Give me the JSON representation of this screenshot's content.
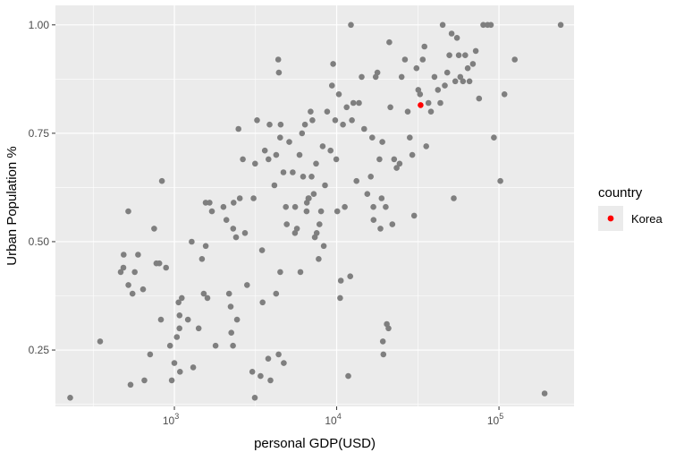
{
  "chart_data": {
    "type": "scatter",
    "xlabel": "personal GDP(USD)",
    "ylabel": "Urban Population %",
    "x_scale": "log10",
    "xlim": [
      185,
      290000
    ],
    "ylim": [
      0.12,
      1.045
    ],
    "x_ticks": [
      {
        "value": 1000,
        "base": "10",
        "exp": "3"
      },
      {
        "value": 10000,
        "base": "10",
        "exp": "4"
      },
      {
        "value": 100000,
        "base": "10",
        "exp": "5"
      }
    ],
    "y_ticks": [
      {
        "value": 0.25,
        "label": "0.25"
      },
      {
        "value": 0.5,
        "label": "0.50"
      },
      {
        "value": 0.75,
        "label": "0.75"
      },
      {
        "value": 1.0,
        "label": "1.00"
      }
    ],
    "grid": true,
    "legend": {
      "position": "right",
      "title": "country",
      "items": [
        {
          "label": "Korea",
          "color": "#ff0000"
        }
      ]
    },
    "colors": {
      "panel": "#ebebeb",
      "grid": "#ffffff",
      "point": "#7f7f7f",
      "highlight": "#ff0000"
    },
    "series": [
      {
        "color": "#7f7f7f",
        "points": [
          [
            228,
            0.14
          ],
          [
            349,
            0.27
          ],
          [
            467,
            0.43
          ],
          [
            487,
            0.47
          ],
          [
            485,
            0.44
          ],
          [
            520,
            0.57
          ],
          [
            521,
            0.4
          ],
          [
            537,
            0.17
          ],
          [
            552,
            0.38
          ],
          [
            570,
            0.43
          ],
          [
            597,
            0.47
          ],
          [
            641,
            0.39
          ],
          [
            654,
            0.18
          ],
          [
            709,
            0.24
          ],
          [
            751,
            0.53
          ],
          [
            775,
            0.45
          ],
          [
            808,
            0.45
          ],
          [
            827,
            0.32
          ],
          [
            838,
            0.64
          ],
          [
            888,
            0.44
          ],
          [
            941,
            0.26
          ],
          [
            963,
            0.18
          ],
          [
            1000,
            0.22
          ],
          [
            1036,
            0.28
          ],
          [
            1061,
            0.36
          ],
          [
            1076,
            0.33
          ],
          [
            1075,
            0.3
          ],
          [
            1083,
            0.2
          ],
          [
            1111,
            0.37
          ],
          [
            1213,
            0.32
          ],
          [
            1279,
            0.5
          ],
          [
            1307,
            0.21
          ],
          [
            1412,
            0.3
          ],
          [
            1479,
            0.46
          ],
          [
            1518,
            0.38
          ],
          [
            1560,
            0.49
          ],
          [
            1559,
            0.59
          ],
          [
            1599,
            0.37
          ],
          [
            1648,
            0.59
          ],
          [
            1703,
            0.57
          ],
          [
            1794,
            0.26
          ],
          [
            2006,
            0.58
          ],
          [
            2092,
            0.55
          ],
          [
            2174,
            0.38
          ],
          [
            2222,
            0.35
          ],
          [
            2244,
            0.29
          ],
          [
            2298,
            0.26
          ],
          [
            2302,
            0.53
          ],
          [
            2318,
            0.59
          ],
          [
            2398,
            0.51
          ],
          [
            2431,
            0.32
          ],
          [
            2483,
            0.76
          ],
          [
            2529,
            0.6
          ],
          [
            2642,
            0.69
          ],
          [
            2722,
            0.52
          ],
          [
            2803,
            0.4
          ],
          [
            3022,
            0.2
          ],
          [
            3077,
            0.6
          ],
          [
            3131,
            0.14
          ],
          [
            3142,
            0.68
          ],
          [
            3233,
            0.78
          ],
          [
            3396,
            0.19
          ],
          [
            3496,
            0.36
          ],
          [
            3468,
            0.48
          ],
          [
            3609,
            0.71
          ],
          [
            3803,
            0.69
          ],
          [
            3786,
            0.23
          ],
          [
            3860,
            0.77
          ],
          [
            3907,
            0.18
          ],
          [
            4132,
            0.63
          ],
          [
            4236,
            0.38
          ],
          [
            4240,
            0.7
          ],
          [
            4363,
            0.92
          ],
          [
            4402,
            0.89
          ],
          [
            4386,
            0.24
          ],
          [
            4484,
            0.74
          ],
          [
            4489,
            0.43
          ],
          [
            4515,
            0.77
          ],
          [
            4699,
            0.66
          ],
          [
            4723,
            0.22
          ],
          [
            4860,
            0.58
          ],
          [
            4925,
            0.54
          ],
          [
            5105,
            0.73
          ],
          [
            5361,
            0.66
          ],
          [
            5535,
            0.52
          ],
          [
            5550,
            0.58
          ],
          [
            5688,
            0.53
          ],
          [
            5906,
            0.7
          ],
          [
            5979,
            0.43
          ],
          [
            6116,
            0.75
          ],
          [
            6209,
            0.65
          ],
          [
            6382,
            0.77
          ],
          [
            6527,
            0.57
          ],
          [
            6551,
            0.59
          ],
          [
            6698,
            0.6
          ],
          [
            6737,
            0.6
          ],
          [
            6906,
            0.8
          ],
          [
            7007,
            0.65
          ],
          [
            7083,
            0.78
          ],
          [
            7227,
            0.61
          ],
          [
            7330,
            0.51
          ],
          [
            7469,
            0.68
          ],
          [
            7530,
            0.52
          ],
          [
            7749,
            0.46
          ],
          [
            7837,
            0.54
          ],
          [
            8011,
            0.57
          ],
          [
            8205,
            0.72
          ],
          [
            8323,
            0.49
          ],
          [
            8473,
            0.63
          ],
          [
            8733,
            0.8
          ],
          [
            9166,
            0.71
          ],
          [
            9354,
            0.86
          ],
          [
            9509,
            0.91
          ],
          [
            9795,
            0.78
          ],
          [
            9946,
            0.69
          ],
          [
            10080,
            0.57
          ],
          [
            10312,
            0.84
          ],
          [
            10496,
            0.37
          ],
          [
            10610,
            0.41
          ],
          [
            10936,
            0.77
          ],
          [
            11213,
            0.58
          ],
          [
            11517,
            0.81
          ],
          [
            11782,
            0.19
          ],
          [
            12126,
            0.42
          ],
          [
            12244,
            1.0
          ],
          [
            12410,
            0.78
          ],
          [
            12667,
            0.82
          ],
          [
            13238,
            0.64
          ],
          [
            13725,
            0.82
          ],
          [
            14263,
            0.88
          ],
          [
            14768,
            0.76
          ],
          [
            15440,
            0.61
          ],
          [
            16223,
            0.65
          ],
          [
            16564,
            0.74
          ],
          [
            16882,
            0.55
          ],
          [
            16840,
            0.58
          ],
          [
            17407,
            0.88
          ],
          [
            17826,
            0.89
          ],
          [
            18351,
            0.69
          ],
          [
            18601,
            0.53
          ],
          [
            18908,
            0.6
          ],
          [
            19106,
            0.73
          ],
          [
            19264,
            0.27
          ],
          [
            19402,
            0.24
          ],
          [
            20056,
            0.58
          ],
          [
            20374,
            0.31
          ],
          [
            20847,
            0.3
          ],
          [
            21106,
            0.96
          ],
          [
            21428,
            0.81
          ],
          [
            22019,
            0.54
          ],
          [
            22597,
            0.69
          ],
          [
            23417,
            0.67
          ],
          [
            24398,
            0.68
          ],
          [
            25138,
            0.88
          ],
          [
            26327,
            0.92
          ],
          [
            27405,
            0.8
          ],
          [
            28193,
            0.74
          ],
          [
            29212,
            0.7
          ],
          [
            30005,
            0.56
          ],
          [
            31012,
            0.9
          ],
          [
            31829,
            0.85
          ],
          [
            32653,
            0.84
          ],
          [
            33896,
            0.92
          ],
          [
            34719,
            0.95
          ],
          [
            35620,
            0.72
          ],
          [
            36794,
            0.82
          ],
          [
            38111,
            0.8
          ],
          [
            40053,
            0.88
          ],
          [
            42086,
            0.85
          ],
          [
            43528,
            0.82
          ],
          [
            44969,
            1.0
          ],
          [
            46386,
            0.86
          ],
          [
            48017,
            0.89
          ],
          [
            49500,
            0.93
          ],
          [
            51108,
            0.98
          ],
          [
            52637,
            0.6
          ],
          [
            53822,
            0.87
          ],
          [
            55089,
            0.97
          ],
          [
            56534,
            0.93
          ],
          [
            57783,
            0.88
          ],
          [
            60001,
            0.87
          ],
          [
            61936,
            0.93
          ],
          [
            64147,
            0.9
          ],
          [
            65859,
            0.87
          ],
          [
            69104,
            0.91
          ],
          [
            71927,
            0.94
          ],
          [
            75406,
            0.83
          ],
          [
            80049,
            1.0
          ],
          [
            85023,
            1.0
          ],
          [
            89107,
            1.0
          ],
          [
            93008,
            0.74
          ],
          [
            101987,
            0.64
          ],
          [
            108130,
            0.84
          ],
          [
            125057,
            0.92
          ],
          [
            191053,
            0.15
          ],
          [
            240014,
            1.0
          ]
        ]
      },
      {
        "name": "Korea",
        "color": "#ff0000",
        "points": [
          [
            32900,
            0.815
          ]
        ]
      }
    ]
  }
}
